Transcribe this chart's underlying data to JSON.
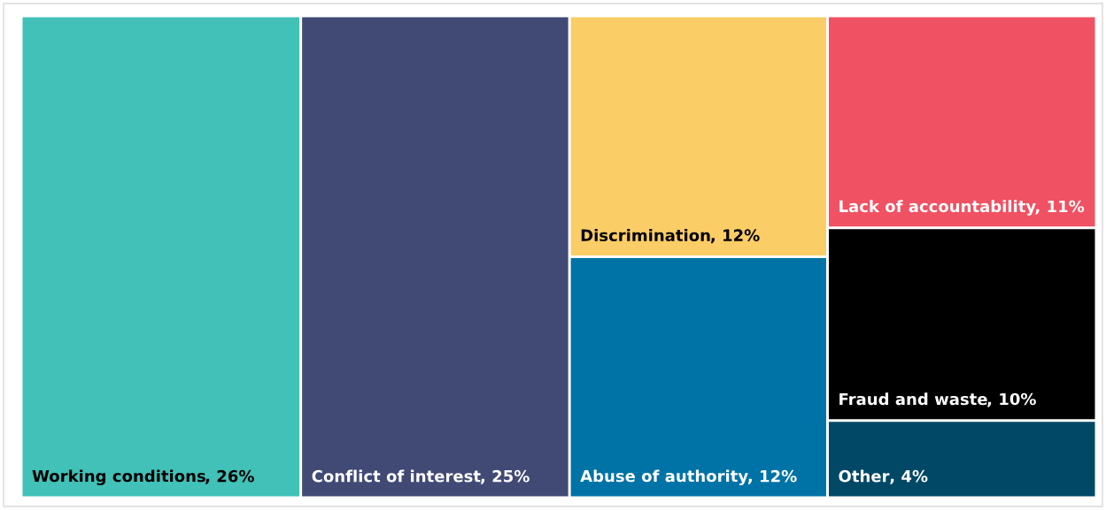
{
  "chart_data": {
    "type": "other",
    "categories": [
      "Working conditions",
      "Conflict of interest",
      "Discrimination",
      "Abuse of authority",
      "Lack of accountability",
      "Fraud and waste",
      "Other"
    ],
    "values": [
      26,
      25,
      12,
      12,
      11,
      10,
      4
    ],
    "value_labels": [
      ", 26%",
      ", 25%",
      ", 12%",
      ", 12%",
      ", 11%",
      ", 10%",
      ", 4%"
    ],
    "colors": [
      "#41c1b7",
      "#404a74",
      "#fbcd66",
      "#0073a6",
      "#f05163",
      "#000000",
      "#004866"
    ]
  }
}
